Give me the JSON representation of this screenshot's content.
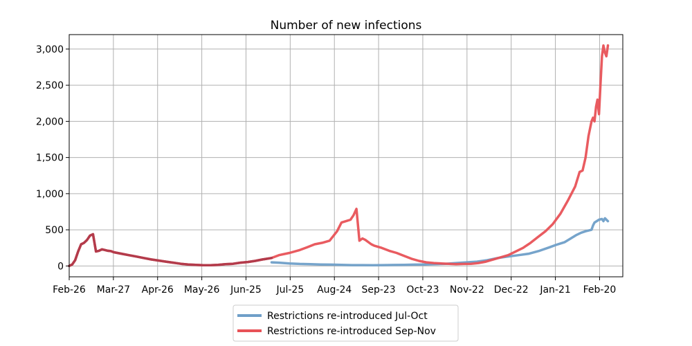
{
  "chart_data": {
    "type": "line",
    "title": "Number of new infections",
    "xlabel": "",
    "ylabel": "",
    "grid": true,
    "legend_position": "bottom-center",
    "x_ticks": [
      "Feb-26",
      "Mar-27",
      "Apr-26",
      "May-26",
      "Jun-25",
      "Jul-25",
      "Aug-24",
      "Sep-23",
      "Oct-23",
      "Nov-22",
      "Dec-22",
      "Jan-21",
      "Feb-20"
    ],
    "y_ticks": [
      "0",
      "500",
      "1,000",
      "1,500",
      "2,000",
      "2,500",
      "3,000"
    ],
    "ylim": [
      -150,
      3200
    ],
    "x_unit": "days since Feb-26",
    "xlim": [
      0,
      372
    ],
    "series": [
      {
        "name": "Restrictions re-introduced Jul-Oct",
        "color": "#6f9fc8",
        "x": [
          136,
          141,
          148,
          155,
          162,
          169,
          176,
          183,
          190,
          197,
          204,
          211,
          218,
          225,
          232,
          239,
          246,
          253,
          260,
          267,
          274,
          281,
          288,
          295,
          302,
          309,
          316,
          323,
          327,
          330,
          333,
          337,
          341,
          344,
          347,
          351,
          352,
          353,
          356,
          358,
          359,
          360,
          361,
          362
        ],
        "y": [
          50,
          45,
          35,
          28,
          25,
          20,
          18,
          15,
          12,
          12,
          10,
          12,
          14,
          15,
          18,
          20,
          25,
          30,
          40,
          50,
          60,
          80,
          110,
          130,
          150,
          170,
          210,
          260,
          290,
          310,
          330,
          380,
          430,
          460,
          480,
          500,
          560,
          600,
          640,
          650,
          620,
          660,
          640,
          620
        ]
      },
      {
        "name": "Restrictions re-introduced Sep-Nov",
        "color": "#e85257",
        "x": [
          0,
          2,
          4,
          6,
          8,
          10,
          12,
          14,
          16,
          18,
          20,
          22,
          24,
          26,
          28,
          30,
          35,
          40,
          45,
          50,
          55,
          60,
          65,
          70,
          75,
          80,
          85,
          90,
          95,
          100,
          105,
          110,
          115,
          120,
          125,
          130,
          136,
          141,
          148,
          155,
          160,
          165,
          170,
          175,
          180,
          183,
          186,
          189,
          191,
          193,
          195,
          197,
          199,
          201,
          203,
          205,
          210,
          215,
          220,
          225,
          230,
          235,
          240,
          245,
          250,
          255,
          260,
          265,
          270,
          275,
          280,
          285,
          290,
          295,
          300,
          305,
          310,
          315,
          320,
          325,
          330,
          335,
          340,
          343,
          345,
          347,
          349,
          351,
          352,
          353,
          354,
          355,
          356,
          357,
          358,
          359,
          360,
          361,
          362
        ],
        "y": [
          0,
          20,
          80,
          200,
          300,
          320,
          360,
          420,
          440,
          200,
          210,
          230,
          220,
          210,
          205,
          190,
          170,
          150,
          130,
          110,
          90,
          75,
          60,
          45,
          30,
          20,
          15,
          10,
          10,
          15,
          25,
          30,
          45,
          55,
          70,
          90,
          110,
          150,
          180,
          220,
          260,
          300,
          320,
          350,
          480,
          600,
          620,
          640,
          700,
          790,
          350,
          380,
          360,
          330,
          300,
          280,
          250,
          210,
          180,
          140,
          100,
          70,
          50,
          40,
          35,
          30,
          25,
          28,
          30,
          40,
          60,
          90,
          120,
          150,
          200,
          250,
          320,
          400,
          480,
          580,
          720,
          900,
          1100,
          1300,
          1320,
          1500,
          1800,
          2000,
          2050,
          2000,
          2200,
          2300,
          2100,
          2500,
          2900,
          3050,
          2950,
          2900,
          3050
        ]
      }
    ],
    "pre_series": {
      "name": "",
      "color": "#b03a4a",
      "x": [
        0,
        2,
        4,
        6,
        8,
        10,
        12,
        14,
        16,
        18,
        20,
        22,
        24,
        26,
        28,
        30,
        35,
        40,
        45,
        50,
        55,
        60,
        65,
        70,
        75,
        80,
        85,
        90,
        95,
        100,
        105,
        110,
        115,
        120,
        125,
        130,
        136
      ],
      "y": [
        0,
        20,
        80,
        200,
        300,
        320,
        360,
        420,
        440,
        200,
        210,
        230,
        220,
        210,
        205,
        190,
        170,
        150,
        130,
        110,
        90,
        75,
        60,
        45,
        30,
        20,
        15,
        10,
        10,
        15,
        25,
        30,
        45,
        55,
        70,
        90,
        110
      ]
    }
  }
}
